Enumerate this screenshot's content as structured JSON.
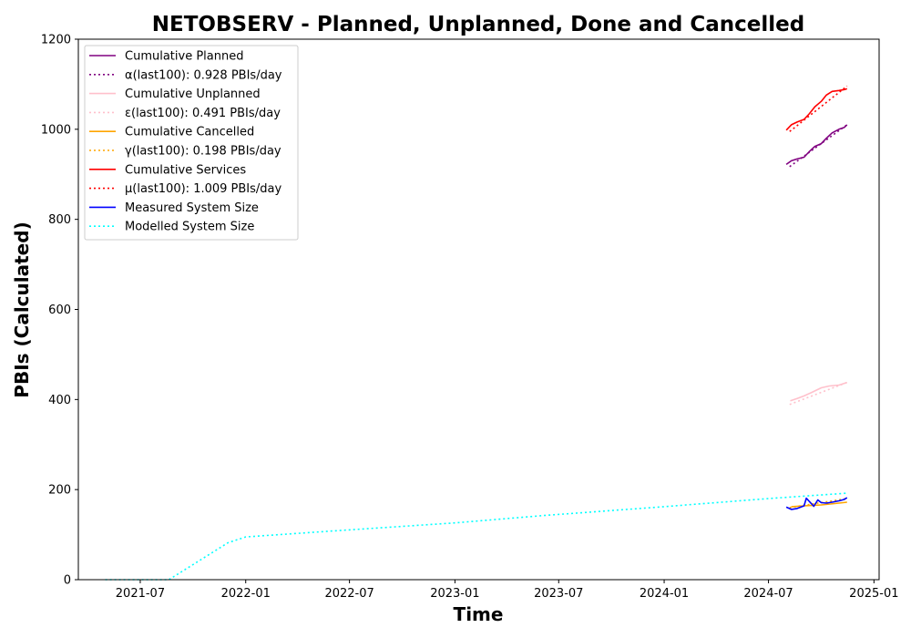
{
  "chart_data": {
    "type": "line",
    "title": "NETOBSERV - Planned, Unplanned, Done  and Cancelled",
    "xlabel": "Time",
    "ylabel": "PBIs (Calculated)",
    "xlim": [
      "2021-03-15",
      "2025-01-10"
    ],
    "ylim": [
      0,
      1200
    ],
    "x_ticks": [
      "2021-07",
      "2022-01",
      "2022-07",
      "2023-01",
      "2023-07",
      "2024-01",
      "2024-07",
      "2025-01"
    ],
    "y_ticks": [
      0,
      200,
      400,
      600,
      800,
      1000,
      1200
    ],
    "grid": false,
    "legend_position": "upper-left",
    "series": [
      {
        "name": "Cumulative Planned",
        "color": "#800080",
        "style": "solid",
        "x": [
          "2024-08-01",
          "2024-08-10",
          "2024-08-20",
          "2024-09-01",
          "2024-09-10",
          "2024-09-20",
          "2024-10-01",
          "2024-10-10",
          "2024-10-20",
          "2024-11-01",
          "2024-11-10",
          "2024-11-15"
        ],
        "y": [
          922,
          930,
          934,
          938,
          950,
          962,
          968,
          980,
          992,
          1000,
          1004,
          1010
        ]
      },
      {
        "name": "α(last100): 0.928 PBIs/day",
        "color": "#800080",
        "style": "dotted",
        "x": [
          "2024-08-07",
          "2024-11-15"
        ],
        "y": [
          917,
          1010
        ]
      },
      {
        "name": "Cumulative Unplanned",
        "color": "#ffc0cb",
        "style": "solid",
        "x": [
          "2024-08-08",
          "2024-08-20",
          "2024-09-01",
          "2024-09-15",
          "2024-10-01",
          "2024-10-15",
          "2024-11-01",
          "2024-11-15"
        ],
        "y": [
          397,
          402,
          408,
          416,
          426,
          430,
          432,
          438
        ]
      },
      {
        "name": "ε(last100): 0.491 PBIs/day",
        "color": "#ffc0cb",
        "style": "dotted",
        "x": [
          "2024-08-07",
          "2024-11-15"
        ],
        "y": [
          389,
          438
        ]
      },
      {
        "name": "Cumulative Cancelled",
        "color": "#ffa500",
        "style": "solid",
        "x": [
          "2024-08-10",
          "2024-09-01",
          "2024-10-01",
          "2024-11-01",
          "2024-11-15"
        ],
        "y": [
          162,
          164,
          166,
          170,
          172
        ]
      },
      {
        "name": "γ(last100): 0.198 PBIs/day",
        "color": "#ffa500",
        "style": "dotted",
        "x": [
          "2024-08-07",
          "2024-11-15"
        ],
        "y": [
          160,
          180
        ]
      },
      {
        "name": "Cumulative Services",
        "color": "#ff0000",
        "style": "solid",
        "x": [
          "2024-08-01",
          "2024-08-10",
          "2024-08-20",
          "2024-09-01",
          "2024-09-10",
          "2024-09-20",
          "2024-10-01",
          "2024-10-10",
          "2024-10-20",
          "2024-11-01",
          "2024-11-10",
          "2024-11-15"
        ],
        "y": [
          998,
          1010,
          1016,
          1022,
          1034,
          1050,
          1062,
          1076,
          1084,
          1086,
          1088,
          1090
        ]
      },
      {
        "name": "μ(last100): 1.009 PBIs/day",
        "color": "#ff0000",
        "style": "dotted",
        "x": [
          "2024-08-07",
          "2024-11-15"
        ],
        "y": [
          995,
          1096
        ]
      },
      {
        "name": "Measured System Size",
        "color": "#0000ff",
        "style": "solid",
        "x": [
          "2024-08-01",
          "2024-08-10",
          "2024-08-20",
          "2024-09-01",
          "2024-09-05",
          "2024-09-10",
          "2024-09-18",
          "2024-09-25",
          "2024-10-01",
          "2024-10-10",
          "2024-10-20",
          "2024-11-01",
          "2024-11-10",
          "2024-11-15"
        ],
        "y": [
          161,
          156,
          158,
          164,
          181,
          174,
          163,
          177,
          171,
          170,
          172,
          175,
          178,
          182
        ]
      },
      {
        "name": "Modelled System Size",
        "color": "#00ffff",
        "style": "dotted",
        "x": [
          "2021-05-01",
          "2021-08-20",
          "2021-12-01",
          "2022-01-01",
          "2022-06-01",
          "2023-01-01",
          "2023-06-01",
          "2024-01-01",
          "2024-07-01",
          "2024-11-15"
        ],
        "y": [
          0,
          0,
          82,
          95,
          108,
          126,
          142,
          162,
          180,
          192
        ]
      }
    ]
  }
}
